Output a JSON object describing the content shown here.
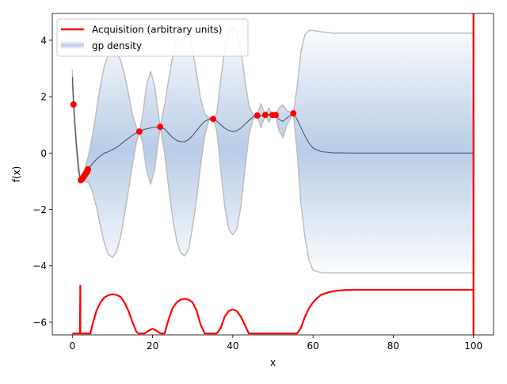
{
  "chart_data": {
    "type": "line",
    "title": "",
    "xlabel": "x",
    "ylabel": "f(x)",
    "xlim": [
      -5,
      105
    ],
    "ylim": [
      -6.45,
      4.95
    ],
    "x_ticks": [
      0,
      20,
      40,
      60,
      80,
      100
    ],
    "y_ticks": [
      4,
      2,
      0,
      -2,
      -4,
      -6
    ],
    "x_tick_labels": [
      "0",
      "20",
      "40",
      "60",
      "80",
      "100"
    ],
    "y_tick_labels": [
      "4",
      "2",
      "0",
      "−2",
      "−4",
      "−6"
    ],
    "grid": false,
    "legend_position": "upper-left",
    "colors": {
      "mean": "#4a5568",
      "band": "#bdbdbd",
      "density": "#7fa3d4",
      "acquisition": "#ff0000",
      "observation": "#ff0000",
      "axes": "#000000"
    },
    "series": [
      {
        "name": "Acquisition (arbitrary units)",
        "color": "#ff0000",
        "x": [
          0,
          1.9,
          2.0,
          2.0,
          2.1,
          2.2,
          4.5,
          5,
          6,
          7,
          8,
          9,
          10,
          11,
          12,
          13,
          14,
          15,
          16,
          16.5,
          17,
          18,
          19,
          20,
          21,
          22,
          23,
          24,
          25,
          26,
          27,
          28,
          29,
          30,
          31,
          32,
          33,
          34,
          35,
          36,
          37,
          38,
          39,
          40,
          41,
          42,
          43,
          44,
          45,
          46,
          56,
          57,
          58,
          59,
          60,
          61,
          62,
          64,
          66,
          68,
          70,
          75,
          80,
          90,
          100,
          100,
          100
        ],
        "values": [
          -6.4,
          -6.4,
          -4.7,
          -6.4,
          -6.4,
          -6.4,
          -6.4,
          -6.1,
          -5.6,
          -5.3,
          -5.12,
          -5.04,
          -5.01,
          -5.03,
          -5.1,
          -5.3,
          -5.6,
          -6.0,
          -6.35,
          -6.4,
          -6.4,
          -6.4,
          -6.3,
          -6.23,
          -6.3,
          -6.4,
          -6.4,
          -5.9,
          -5.5,
          -5.3,
          -5.2,
          -5.17,
          -5.2,
          -5.3,
          -5.6,
          -6.1,
          -6.4,
          -6.4,
          -6.4,
          -6.4,
          -6.2,
          -5.8,
          -5.6,
          -5.55,
          -5.6,
          -5.8,
          -6.1,
          -6.4,
          -6.4,
          -6.4,
          -6.4,
          -6.2,
          -5.8,
          -5.5,
          -5.3,
          -5.15,
          -5.03,
          -4.93,
          -4.88,
          -4.86,
          -4.85,
          -4.85,
          -4.85,
          -4.85,
          -4.85,
          4.95,
          -6.45
        ]
      },
      {
        "name": "gp density",
        "color": "#7fa3d4"
      }
    ],
    "observations": {
      "x": [
        0.3,
        2.1,
        2.3,
        2.5,
        2.7,
        2.9,
        3.1,
        3.3,
        3.5,
        3.7,
        3.9,
        16.7,
        21.9,
        35.1,
        46.1,
        48.1,
        49.9,
        50.7,
        55.1
      ],
      "y": [
        1.72,
        -0.96,
        -0.93,
        -0.9,
        -0.86,
        -0.82,
        -0.78,
        -0.74,
        -0.7,
        -0.65,
        -0.58,
        0.76,
        0.93,
        1.21,
        1.33,
        1.35,
        1.35,
        1.35,
        1.41
      ]
    },
    "gp_mean": {
      "x": [
        0,
        0.5,
        1,
        1.5,
        2.0,
        2.5,
        3,
        4,
        5,
        6,
        7,
        8,
        9,
        10,
        11,
        12,
        13,
        14,
        15,
        16,
        16.7,
        17.5,
        18.5,
        19.5,
        20.5,
        21.9,
        23,
        24,
        25,
        26,
        27,
        28,
        29,
        30,
        31,
        32,
        33,
        34,
        35.1,
        36,
        37,
        38,
        39,
        40,
        41,
        42,
        43,
        44,
        45,
        46.1,
        47,
        48.1,
        49,
        49.9,
        50.7,
        51.5,
        52.5,
        53.5,
        55.1,
        56,
        57,
        58,
        59,
        60,
        62,
        65,
        70,
        80,
        90,
        100
      ],
      "y": [
        2.7,
        1.3,
        0.3,
        -0.5,
        -0.96,
        -0.9,
        -0.8,
        -0.58,
        -0.38,
        -0.22,
        -0.1,
        0.0,
        0.05,
        0.12,
        0.2,
        0.3,
        0.42,
        0.53,
        0.63,
        0.72,
        0.76,
        0.82,
        0.86,
        0.89,
        0.92,
        0.93,
        0.85,
        0.7,
        0.55,
        0.45,
        0.4,
        0.4,
        0.48,
        0.62,
        0.8,
        0.98,
        1.12,
        1.2,
        1.21,
        1.13,
        1.0,
        0.88,
        0.8,
        0.76,
        0.79,
        0.88,
        1.02,
        1.15,
        1.28,
        1.33,
        1.32,
        1.35,
        1.36,
        1.35,
        1.35,
        1.2,
        1.12,
        1.25,
        1.41,
        1.2,
        0.9,
        0.6,
        0.35,
        0.18,
        0.05,
        0.01,
        0.0,
        0.0,
        0.0,
        0.0
      ]
    },
    "gp_upper": {
      "x": [
        0,
        0.5,
        1,
        1.5,
        2.0,
        2.5,
        3,
        4,
        5,
        6,
        7,
        8,
        9,
        10,
        11,
        12,
        13,
        14,
        15,
        16,
        16.7,
        17.5,
        18.5,
        19.5,
        20.5,
        21.9,
        23,
        24,
        25,
        26,
        27,
        28,
        29,
        30,
        31,
        32,
        33,
        34,
        35.1,
        36,
        37,
        38,
        39,
        40,
        41,
        42,
        43,
        44,
        45,
        46.1,
        47,
        48.1,
        49,
        49.9,
        50.7,
        51.5,
        52.5,
        53.5,
        55.1,
        56,
        57,
        58,
        59,
        60,
        62,
        65,
        70,
        80,
        90,
        100
      ],
      "y": [
        2.95,
        1.5,
        0.45,
        -0.3,
        -0.96,
        -0.8,
        -0.6,
        -0.1,
        0.6,
        1.5,
        2.4,
        3.1,
        3.5,
        3.6,
        3.55,
        3.3,
        2.8,
        2.1,
        1.35,
        0.9,
        0.76,
        1.3,
        2.4,
        2.9,
        2.4,
        0.93,
        1.7,
        2.6,
        3.4,
        4.0,
        4.35,
        4.4,
        4.2,
        3.6,
        2.8,
        1.9,
        1.4,
        1.25,
        1.21,
        1.4,
        2.6,
        3.7,
        4.3,
        4.45,
        4.3,
        3.7,
        2.6,
        1.7,
        1.35,
        1.33,
        1.75,
        1.35,
        1.6,
        1.35,
        1.35,
        1.6,
        1.7,
        1.5,
        1.41,
        2.3,
        3.6,
        4.2,
        4.35,
        4.35,
        4.3,
        4.25,
        4.25,
        4.25,
        4.25,
        4.25
      ]
    },
    "gp_lower": {
      "x": [
        0,
        0.5,
        1,
        1.5,
        2.0,
        2.5,
        3,
        4,
        5,
        6,
        7,
        8,
        9,
        10,
        11,
        12,
        13,
        14,
        15,
        16,
        16.7,
        17.5,
        18.5,
        19.5,
        20.5,
        21.9,
        23,
        24,
        25,
        26,
        27,
        28,
        29,
        30,
        31,
        32,
        33,
        34,
        35.1,
        36,
        37,
        38,
        39,
        40,
        41,
        42,
        43,
        44,
        45,
        46.1,
        47,
        48.1,
        49,
        49.9,
        50.7,
        51.5,
        52.5,
        53.5,
        55.1,
        56,
        57,
        58,
        59,
        60,
        62,
        65,
        70,
        80,
        90,
        100
      ],
      "y": [
        2.45,
        1.1,
        0.15,
        -0.7,
        -0.96,
        -1.0,
        -1.0,
        -1.05,
        -1.35,
        -1.9,
        -2.6,
        -3.2,
        -3.6,
        -3.7,
        -3.5,
        -3.0,
        -2.2,
        -1.3,
        -0.4,
        0.4,
        0.76,
        0.4,
        -0.6,
        -1.1,
        -0.6,
        0.93,
        0.0,
        -1.2,
        -2.3,
        -3.1,
        -3.55,
        -3.65,
        -3.4,
        -2.6,
        -1.6,
        -0.4,
        0.6,
        1.15,
        1.21,
        0.8,
        -0.6,
        -1.9,
        -2.7,
        -2.9,
        -2.7,
        -1.9,
        -0.6,
        0.6,
        1.2,
        1.33,
        0.9,
        1.35,
        1.1,
        1.35,
        1.35,
        0.8,
        0.55,
        1.0,
        1.41,
        0.1,
        -1.8,
        -3.0,
        -3.8,
        -4.15,
        -4.25,
        -4.25,
        -4.25,
        -4.25,
        -4.25,
        -4.25
      ]
    }
  }
}
